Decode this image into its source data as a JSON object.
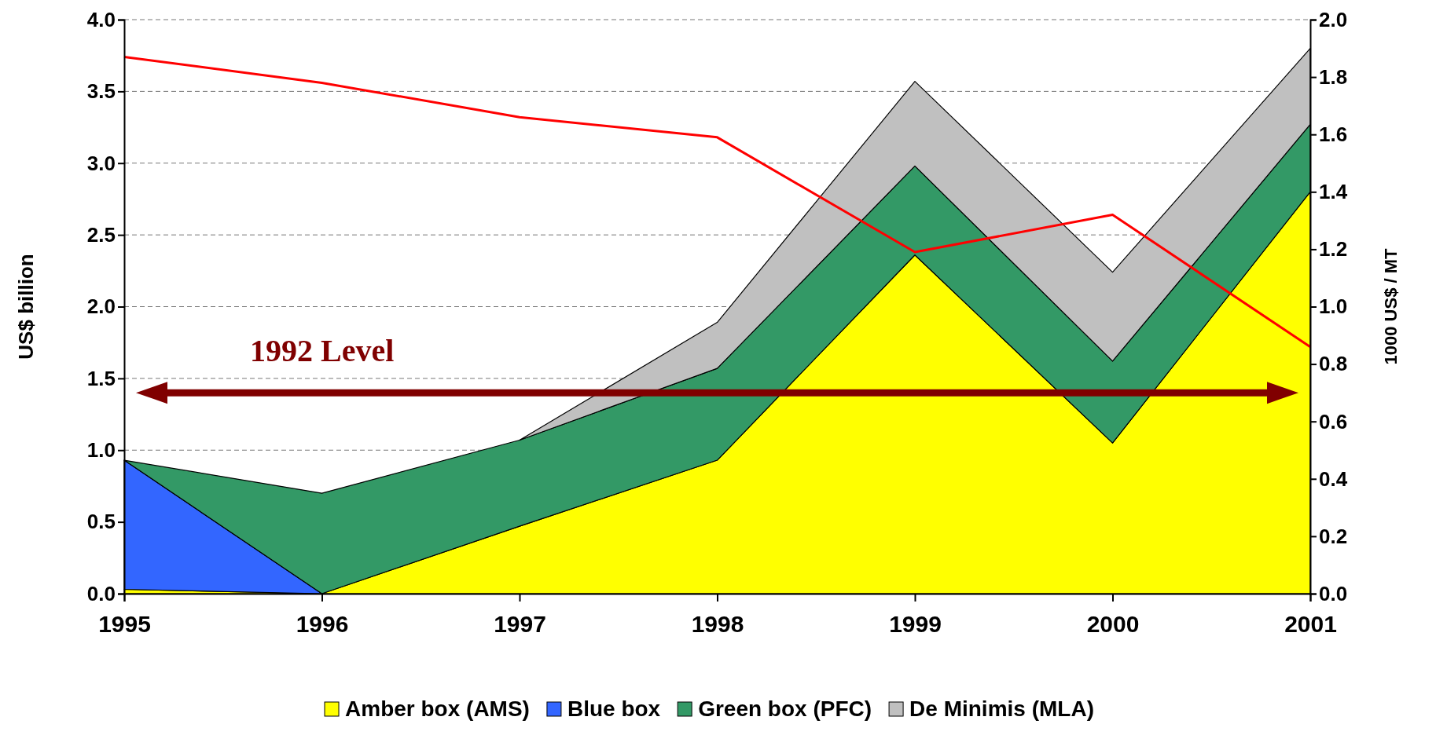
{
  "chart_data": {
    "type": "area",
    "stacked": true,
    "x": [
      1995,
      1996,
      1997,
      1998,
      1999,
      2000,
      2001
    ],
    "xlim": [
      1995,
      2001
    ],
    "xticks": [
      1995,
      1996,
      1997,
      1998,
      1999,
      2000,
      2001
    ],
    "ylabel": "US$ billion",
    "y2label": "1000 US$ / MT",
    "ylim": [
      0,
      4
    ],
    "yticks": [
      {
        "value": 0,
        "label": "0.0"
      },
      {
        "value": 0.5,
        "label": "0.5"
      },
      {
        "value": 1,
        "label": "1.0"
      },
      {
        "value": 1.5,
        "label": "1.5"
      },
      {
        "value": 2,
        "label": "2.0"
      },
      {
        "value": 2.5,
        "label": "2.5"
      },
      {
        "value": 3,
        "label": "3.0"
      },
      {
        "value": 3.5,
        "label": "3.5"
      },
      {
        "value": 4,
        "label": "4.0"
      }
    ],
    "y2lim": [
      0,
      2
    ],
    "y2ticks": [
      {
        "value": 0,
        "label": "0.0"
      },
      {
        "value": 0.2,
        "label": "0.2"
      },
      {
        "value": 0.4,
        "label": "0.4"
      },
      {
        "value": 0.6,
        "label": "0.6"
      },
      {
        "value": 0.8,
        "label": "0.8"
      },
      {
        "value": 1,
        "label": "1.0"
      },
      {
        "value": 1.2,
        "label": "1.2"
      },
      {
        "value": 1.4,
        "label": "1.4"
      },
      {
        "value": 1.6,
        "label": "1.6"
      },
      {
        "value": 1.8,
        "label": "1.8"
      },
      {
        "value": 2,
        "label": "2.0"
      }
    ],
    "series": [
      {
        "name": "Amber box (AMS)",
        "color": "#ffff00",
        "values": [
          0.03,
          0,
          0.47,
          0.93,
          2.36,
          1.05,
          2.8
        ]
      },
      {
        "name": "Blue box",
        "color": "#3366ff",
        "values": [
          0.9,
          0,
          null,
          null,
          null,
          null,
          null
        ]
      },
      {
        "name": "Green box (PFC)",
        "color": "#339966",
        "values": [
          0,
          0.7,
          0.6,
          0.64,
          0.62,
          0.57,
          0.47
        ]
      },
      {
        "name": "De Minimis (MLA)",
        "color": "#c0c0c0",
        "values": [
          null,
          null,
          0,
          0.32,
          0.59,
          0.62,
          0.53
        ]
      },
      {
        "type": "line",
        "axis": "y2",
        "color": "#ff0000",
        "values": [
          1.87,
          1.78,
          1.66,
          1.59,
          1.19,
          1.32,
          0.86
        ]
      }
    ],
    "ref_lines": [
      {
        "axis": "y",
        "value": 1.4,
        "label": "1992 Level",
        "color": "#800000"
      }
    ],
    "grid": "y",
    "legend": "bottom"
  }
}
